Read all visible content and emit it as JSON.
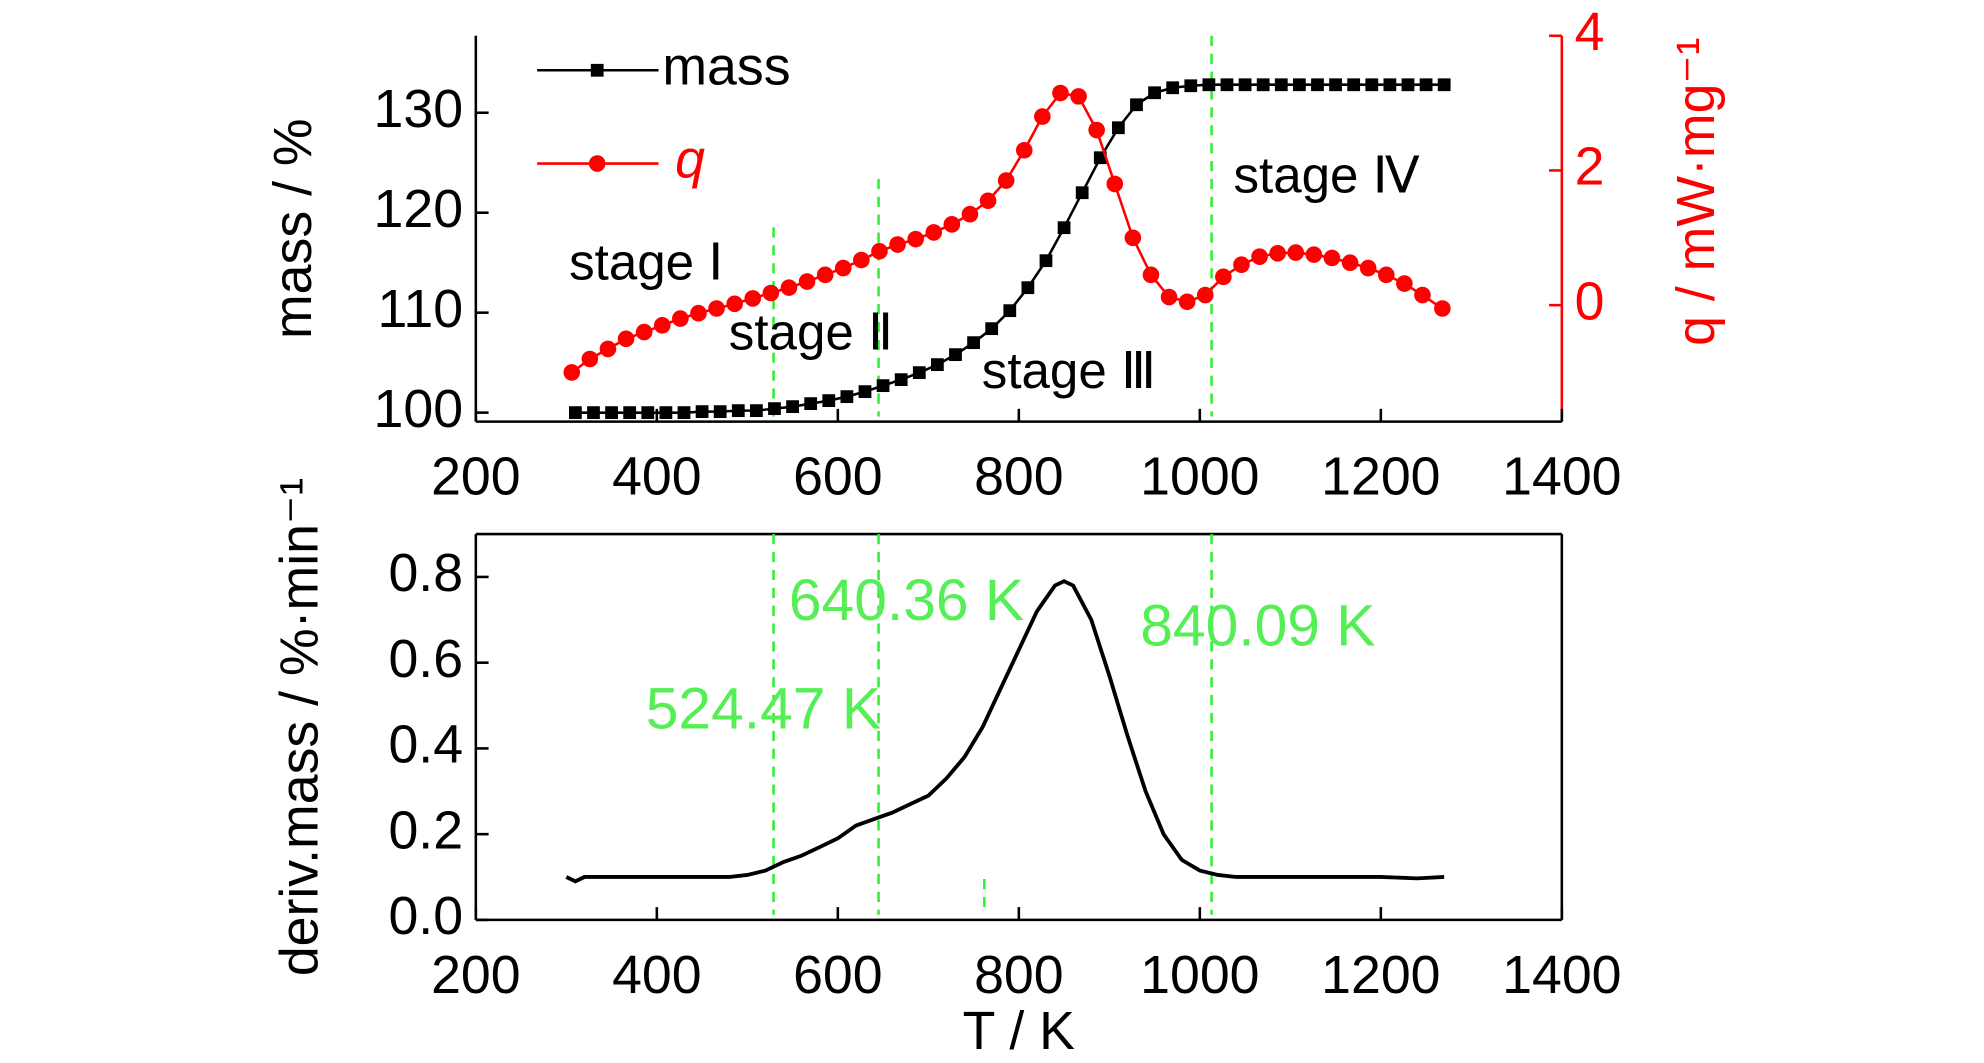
{
  "chart_data": [
    {
      "type": "line",
      "y_label": "mass / %",
      "y2_label": "q / mW·mg⁻¹",
      "xlim": [
        200,
        1400
      ],
      "xticks": [
        200,
        400,
        600,
        800,
        1000,
        1200,
        1400
      ],
      "ylim": [
        99.1,
        137.7
      ],
      "yticks": [
        100,
        110,
        120,
        130
      ],
      "y2lim": [
        -1.73,
        4
      ],
      "y2ticks": [
        0,
        2,
        4
      ],
      "vlines": [
        529,
        645,
        1013
      ],
      "annotations": [
        "stage Ⅰ",
        "stage Ⅱ",
        "stage Ⅲ",
        "stage Ⅳ"
      ],
      "series": [
        {
          "name": "mass",
          "color": "#000000",
          "marker": "square",
          "axis": "y",
          "x": [
            310,
            330,
            350,
            370,
            390,
            410,
            430,
            450,
            470,
            490,
            510,
            530,
            550,
            570,
            590,
            610,
            630,
            650,
            670,
            690,
            710,
            730,
            750,
            770,
            790,
            810,
            830,
            850,
            870,
            890,
            910,
            930,
            950,
            970,
            990,
            1010,
            1030,
            1050,
            1070,
            1090,
            1110,
            1130,
            1150,
            1170,
            1190,
            1210,
            1230,
            1250,
            1270
          ],
          "values": [
            100,
            100,
            100,
            100,
            100,
            100,
            100,
            100.1,
            100.1,
            100.2,
            100.2,
            100.4,
            100.6,
            100.9,
            101.2,
            101.6,
            102.1,
            102.7,
            103.3,
            104.0,
            104.8,
            105.8,
            107.0,
            108.4,
            110.2,
            112.5,
            115.2,
            118.5,
            122.0,
            125.5,
            128.5,
            130.8,
            132.0,
            132.5,
            132.7,
            132.8,
            132.8,
            132.8,
            132.8,
            132.8,
            132.8,
            132.8,
            132.8,
            132.8,
            132.8,
            132.8,
            132.8,
            132.8,
            132.8
          ]
        },
        {
          "name": "q",
          "color": "#ff0000",
          "marker": "circle",
          "axis": "y2",
          "x": [
            306,
            326,
            346,
            366,
            386,
            406,
            426,
            446,
            466,
            486,
            506,
            526,
            546,
            566,
            586,
            606,
            626,
            646,
            666,
            686,
            706,
            726,
            746,
            766,
            786,
            806,
            826,
            846,
            866,
            886,
            906,
            926,
            946,
            966,
            986,
            1006,
            1026,
            1046,
            1066,
            1086,
            1106,
            1126,
            1146,
            1166,
            1186,
            1206,
            1226,
            1246,
            1268
          ],
          "values": [
            -1.0,
            -0.8,
            -0.65,
            -0.5,
            -0.4,
            -0.3,
            -0.2,
            -0.12,
            -0.05,
            0.02,
            0.1,
            0.18,
            0.26,
            0.35,
            0.45,
            0.55,
            0.67,
            0.8,
            0.9,
            0.98,
            1.08,
            1.2,
            1.35,
            1.55,
            1.85,
            2.3,
            2.8,
            3.15,
            3.1,
            2.6,
            1.8,
            1.0,
            0.45,
            0.12,
            0.05,
            0.15,
            0.42,
            0.6,
            0.72,
            0.77,
            0.78,
            0.75,
            0.7,
            0.63,
            0.55,
            0.45,
            0.32,
            0.15,
            -0.05
          ]
        }
      ]
    },
    {
      "type": "line",
      "y_label": "deriv.mass / %·min⁻¹",
      "x_label": "T / K",
      "xlim": [
        200,
        1400
      ],
      "xticks": [
        200,
        400,
        600,
        800,
        1000,
        1200,
        1400
      ],
      "ylim": [
        0,
        0.9
      ],
      "yticks": [
        {
          "value": 0,
          "label": "0.0"
        },
        0.2,
        0.4,
        0.6,
        0.8
      ],
      "vlines": [
        529,
        645,
        1013
      ],
      "annotations": [
        "524.47 K",
        "640.36 K",
        "840.09 K"
      ],
      "color": "#000000",
      "x": [
        300,
        310,
        320,
        340,
        360,
        380,
        400,
        420,
        440,
        460,
        480,
        500,
        520,
        540,
        560,
        580,
        600,
        620,
        640,
        660,
        680,
        700,
        720,
        740,
        760,
        780,
        800,
        820,
        840,
        850,
        860,
        880,
        900,
        920,
        940,
        960,
        980,
        1000,
        1020,
        1040,
        1080,
        1120,
        1160,
        1200,
        1240,
        1270
      ],
      "values": [
        0.1,
        0.09,
        0.1,
        0.1,
        0.1,
        0.1,
        0.1,
        0.1,
        0.1,
        0.1,
        0.1,
        0.105,
        0.115,
        0.135,
        0.15,
        0.17,
        0.19,
        0.22,
        0.235,
        0.25,
        0.27,
        0.29,
        0.33,
        0.38,
        0.45,
        0.54,
        0.63,
        0.72,
        0.78,
        0.79,
        0.78,
        0.7,
        0.57,
        0.43,
        0.3,
        0.2,
        0.14,
        0.115,
        0.105,
        0.1,
        0.1,
        0.1,
        0.1,
        0.1,
        0.097,
        0.1
      ]
    }
  ]
}
